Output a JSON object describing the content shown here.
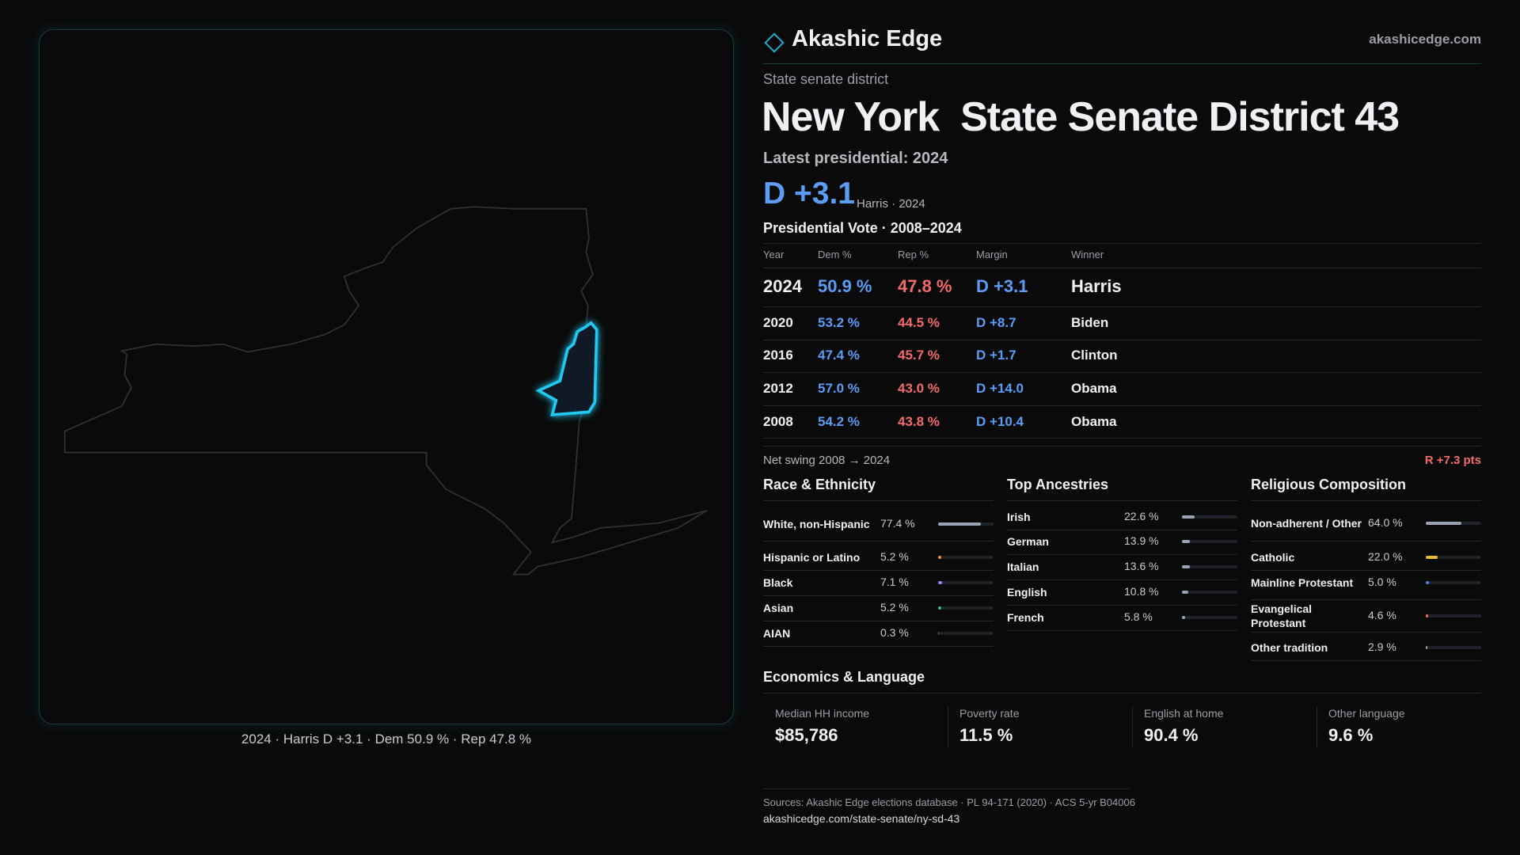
{
  "header": {
    "brand": "Akashic Edge",
    "site": "akashicedge.com"
  },
  "kicker": "State senate district",
  "title": {
    "state": "New York",
    "district": "State Senate District 43"
  },
  "latest": "Latest presidential: 2024",
  "lean": {
    "margin": "D +3.1",
    "note": "Harris · 2024"
  },
  "vote_table": {
    "title": "Presidential Vote · 2008–2024",
    "columns": [
      "Year",
      "Dem %",
      "Rep %",
      "Margin",
      "Winner"
    ],
    "rows": [
      [
        "2024",
        "50.9 %",
        "47.8 %",
        "D +3.1",
        "Harris"
      ],
      [
        "2020",
        "53.2 %",
        "44.5 %",
        "D +8.7",
        "Biden"
      ],
      [
        "2016",
        "47.4 %",
        "45.7 %",
        "D +1.7",
        "Clinton"
      ],
      [
        "2012",
        "57.0 %",
        "43.0 %",
        "D +14.0",
        "Obama"
      ],
      [
        "2008",
        "54.2 %",
        "43.8 %",
        "D +10.4",
        "Obama"
      ]
    ]
  },
  "net_swing": {
    "label": "Net swing 2008 → 2024",
    "value": "R +7.3 pts"
  },
  "race": {
    "title": "Race & Ethnicity",
    "items": [
      {
        "label": "White, non-Hispanic",
        "value": 77.4,
        "value_label": "77.4 %",
        "color": "#9aa3b5"
      },
      {
        "label": "Hispanic or Latino",
        "value": 5.2,
        "value_label": "5.2 %",
        "color": "#e9902c"
      },
      {
        "label": "Black",
        "value": 7.1,
        "value_label": "7.1 %",
        "color": "#9b7cf0"
      },
      {
        "label": "Asian",
        "value": 5.2,
        "value_label": "5.2 %",
        "color": "#2fbf7f"
      },
      {
        "label": "AIAN",
        "value": 0.3,
        "value_label": "0.3 %",
        "color": "#5a6070"
      }
    ]
  },
  "ancestry": {
    "title": "Top Ancestries",
    "items": [
      {
        "label": "Irish",
        "value": 22.6,
        "value_label": "22.6 %",
        "color": "#9aa3b5"
      },
      {
        "label": "German",
        "value": 13.9,
        "value_label": "13.9 %",
        "color": "#9aa3b5"
      },
      {
        "label": "Italian",
        "value": 13.6,
        "value_label": "13.6 %",
        "color": "#9aa3b5"
      },
      {
        "label": "English",
        "value": 10.8,
        "value_label": "10.8 %",
        "color": "#9aa3b5"
      },
      {
        "label": "French",
        "value": 5.8,
        "value_label": "5.8 %",
        "color": "#9aa3b5"
      }
    ]
  },
  "religion": {
    "title": "Religious Composition",
    "items": [
      {
        "label": "Non-adherent / Other",
        "value": 64.0,
        "value_label": "64.0 %",
        "color": "#9aa3b5"
      },
      {
        "label": "Catholic",
        "value": 22.0,
        "value_label": "22.0 %",
        "color": "#e8b830"
      },
      {
        "label": "Mainline Protestant",
        "value": 5.0,
        "value_label": "5.0 %",
        "color": "#4f86f0"
      },
      {
        "label": "Evangelical Protestant",
        "value": 4.6,
        "value_label": "4.6 %",
        "color": "#f06a5a"
      },
      {
        "label": "Other tradition",
        "value": 2.9,
        "value_label": "2.9 %",
        "color": "#9aa3b5"
      }
    ]
  },
  "economics": {
    "title": "Economics & Language",
    "cards": [
      {
        "label": "Median HH income",
        "value": "$85,786"
      },
      {
        "label": "Poverty rate",
        "value": "11.5 %"
      },
      {
        "label": "English at home",
        "value": "90.4 %"
      },
      {
        "label": "Other language",
        "value": "9.6 %"
      }
    ]
  },
  "map": {
    "caption": "2024 · Harris D +3.1 · Dem 50.9 % · Rep 47.8 %"
  },
  "footer": {
    "sources": "Sources: Akashic Edge elections database · PL 94-171 (2020) · ACS 5-yr B04006",
    "url": "akashicedge.com/state-senate/ny-sd-43"
  }
}
